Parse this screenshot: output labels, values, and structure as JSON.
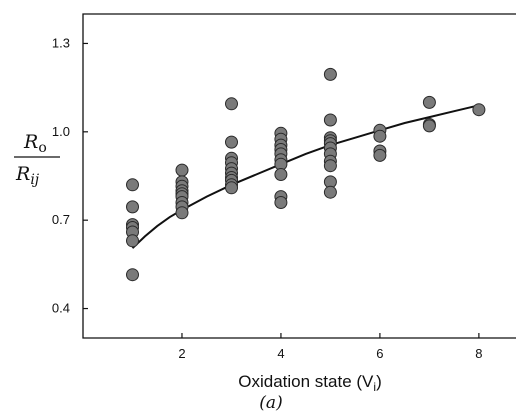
{
  "chart_data": {
    "type": "scatter",
    "xlabel": "Oxidation state (V",
    "xlabel_sub": "i",
    "xlabel_close": ")",
    "ylabel": {
      "numerator": "R",
      "numerator_sub": "o",
      "denominator": "R",
      "denominator_sub": "ij"
    },
    "panel_label": "(a)",
    "xlim": [
      0,
      8.75
    ],
    "ylim": [
      0.3,
      1.4
    ],
    "xticks": [
      2,
      4,
      6,
      8
    ],
    "yticks": [
      0.4,
      0.7,
      1.0,
      1.3
    ],
    "ytick_labels": [
      "0.4",
      "0.7",
      "1.0",
      "1.3"
    ],
    "xtick_labels": [
      "2",
      "4",
      "6",
      "8"
    ],
    "points": [
      {
        "x": 1,
        "y": 0.82
      },
      {
        "x": 1,
        "y": 0.745
      },
      {
        "x": 1,
        "y": 0.685
      },
      {
        "x": 1,
        "y": 0.675
      },
      {
        "x": 1,
        "y": 0.66
      },
      {
        "x": 1,
        "y": 0.63
      },
      {
        "x": 1,
        "y": 0.515
      },
      {
        "x": 2,
        "y": 0.87
      },
      {
        "x": 2,
        "y": 0.83
      },
      {
        "x": 2,
        "y": 0.815
      },
      {
        "x": 2,
        "y": 0.8
      },
      {
        "x": 2,
        "y": 0.79
      },
      {
        "x": 2,
        "y": 0.78
      },
      {
        "x": 2,
        "y": 0.76
      },
      {
        "x": 2,
        "y": 0.745
      },
      {
        "x": 2,
        "y": 0.725
      },
      {
        "x": 3,
        "y": 1.095
      },
      {
        "x": 3,
        "y": 0.965
      },
      {
        "x": 3,
        "y": 0.91
      },
      {
        "x": 3,
        "y": 0.895
      },
      {
        "x": 3,
        "y": 0.875
      },
      {
        "x": 3,
        "y": 0.86
      },
      {
        "x": 3,
        "y": 0.845
      },
      {
        "x": 3,
        "y": 0.835
      },
      {
        "x": 3,
        "y": 0.82
      },
      {
        "x": 3,
        "y": 0.81
      },
      {
        "x": 4,
        "y": 0.995
      },
      {
        "x": 4,
        "y": 0.975
      },
      {
        "x": 4,
        "y": 0.955
      },
      {
        "x": 4,
        "y": 0.94
      },
      {
        "x": 4,
        "y": 0.925
      },
      {
        "x": 4,
        "y": 0.905
      },
      {
        "x": 4,
        "y": 0.89
      },
      {
        "x": 4,
        "y": 0.855
      },
      {
        "x": 4,
        "y": 0.78
      },
      {
        "x": 4,
        "y": 0.76
      },
      {
        "x": 5,
        "y": 1.195
      },
      {
        "x": 5,
        "y": 1.04
      },
      {
        "x": 5,
        "y": 0.98
      },
      {
        "x": 5,
        "y": 0.97
      },
      {
        "x": 5,
        "y": 0.96
      },
      {
        "x": 5,
        "y": 0.945
      },
      {
        "x": 5,
        "y": 0.925
      },
      {
        "x": 5,
        "y": 0.9
      },
      {
        "x": 5,
        "y": 0.885
      },
      {
        "x": 5,
        "y": 0.83
      },
      {
        "x": 5,
        "y": 0.795
      },
      {
        "x": 6,
        "y": 1.005
      },
      {
        "x": 6,
        "y": 0.985
      },
      {
        "x": 6,
        "y": 0.935
      },
      {
        "x": 6,
        "y": 0.92
      },
      {
        "x": 7,
        "y": 1.1
      },
      {
        "x": 7,
        "y": 1.025
      },
      {
        "x": 7,
        "y": 1.02
      },
      {
        "x": 8,
        "y": 1.075
      }
    ],
    "fit_curve": {
      "x": [
        1.0,
        1.25,
        1.5,
        1.75,
        2.0,
        2.5,
        3.0,
        3.5,
        4.0,
        4.5,
        5.0,
        5.5,
        6.0,
        6.5,
        7.0,
        7.5,
        8.0
      ],
      "y": [
        0.605,
        0.645,
        0.68,
        0.71,
        0.735,
        0.78,
        0.82,
        0.855,
        0.89,
        0.925,
        0.955,
        0.98,
        1.005,
        1.03,
        1.05,
        1.07,
        1.09
      ]
    },
    "colors": {
      "marker_fill": "#7a7a7a",
      "marker_edge": "#2a2a2a",
      "line": "#111111"
    }
  }
}
